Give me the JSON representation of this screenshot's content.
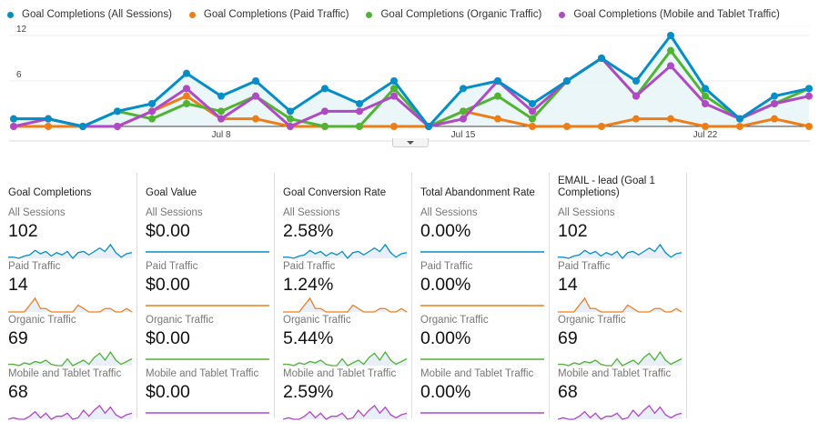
{
  "chart_data": {
    "type": "line",
    "title": "",
    "xlabel": "",
    "ylabel": "",
    "ylim": [
      0,
      12
    ],
    "yticks": [
      "12",
      "6"
    ],
    "xtick_labels": [
      {
        "index": 6,
        "label": "Jul 8"
      },
      {
        "index": 13,
        "label": "Jul 15"
      },
      {
        "index": 20,
        "label": "Jul 22"
      }
    ],
    "x": [
      "Jul 2",
      "Jul 3",
      "Jul 4",
      "Jul 5",
      "Jul 6",
      "Jul 7",
      "Jul 8",
      "Jul 9",
      "Jul 10",
      "Jul 11",
      "Jul 12",
      "Jul 13",
      "Jul 14",
      "Jul 15",
      "Jul 16",
      "Jul 17",
      "Jul 18",
      "Jul 19",
      "Jul 20",
      "Jul 21",
      "Jul 22",
      "Jul 23",
      "Jul 24",
      "Jul 25"
    ],
    "grid": true,
    "legend_position": "top-left",
    "series": [
      {
        "name": "Goal Completions (All Sessions)",
        "color": "#058DC7",
        "area": true,
        "values": [
          1,
          1,
          0,
          2,
          3,
          7,
          4,
          6,
          2,
          5,
          3,
          6,
          0,
          5,
          6,
          3,
          6,
          9,
          6,
          12,
          5,
          1,
          4,
          5
        ]
      },
      {
        "name": "Goal Completions (Paid Traffic)",
        "color": "#ED7E17",
        "area": false,
        "values": [
          0,
          0,
          0,
          0,
          2,
          4,
          1,
          1,
          0,
          0,
          0,
          0,
          0,
          2,
          1,
          0,
          0,
          0,
          1,
          1,
          0,
          0,
          1,
          0
        ]
      },
      {
        "name": "Goal Completions (Organic Traffic)",
        "color": "#50B432",
        "area": false,
        "values": [
          1,
          1,
          0,
          2,
          1,
          3,
          2,
          4,
          1,
          0,
          0,
          5,
          0,
          2,
          4,
          1,
          6,
          9,
          4,
          10,
          4,
          1,
          3,
          5
        ]
      },
      {
        "name": "Goal Completions (Mobile and Tablet Traffic)",
        "color": "#AF49C5",
        "area": false,
        "values": [
          0,
          1,
          0,
          0,
          2,
          5,
          1,
          4,
          0,
          2,
          2,
          4,
          0,
          1,
          6,
          2,
          6,
          9,
          4,
          8,
          3,
          1,
          3,
          4
        ]
      }
    ]
  },
  "legend": [
    {
      "label": "Goal Completions (All Sessions)",
      "color": "#058DC7"
    },
    {
      "label": "Goal Completions (Paid Traffic)",
      "color": "#ED7E17"
    },
    {
      "label": "Goal Completions (Organic Traffic)",
      "color": "#50B432"
    },
    {
      "label": "Goal Completions (Mobile and Tablet Traffic)",
      "color": "#AF49C5"
    }
  ],
  "segment_colors": [
    "#058DC7",
    "#ED7E17",
    "#50B432",
    "#AF49C5"
  ],
  "cards": [
    {
      "title": "Goal Completions",
      "segments": [
        {
          "label": "All Sessions",
          "value": "102",
          "spark": "all"
        },
        {
          "label": "Paid Traffic",
          "value": "14",
          "spark": "paid"
        },
        {
          "label": "Organic Traffic",
          "value": "69",
          "spark": "organic"
        },
        {
          "label": "Mobile and Tablet Traffic",
          "value": "68",
          "spark": "mobile"
        }
      ]
    },
    {
      "title": "Goal Value",
      "segments": [
        {
          "label": "All Sessions",
          "value": "$0.00",
          "spark": "flat"
        },
        {
          "label": "Paid Traffic",
          "value": "$0.00",
          "spark": "flat"
        },
        {
          "label": "Organic Traffic",
          "value": "$0.00",
          "spark": "flat"
        },
        {
          "label": "Mobile and Tablet Traffic",
          "value": "$0.00",
          "spark": "flat"
        }
      ]
    },
    {
      "title": "Goal Conversion Rate",
      "segments": [
        {
          "label": "All Sessions",
          "value": "2.58%",
          "spark": "all"
        },
        {
          "label": "Paid Traffic",
          "value": "1.24%",
          "spark": "paid"
        },
        {
          "label": "Organic Traffic",
          "value": "5.44%",
          "spark": "organic"
        },
        {
          "label": "Mobile and Tablet Traffic",
          "value": "2.59%",
          "spark": "mobile"
        }
      ]
    },
    {
      "title": "Total Abandonment Rate",
      "segments": [
        {
          "label": "All Sessions",
          "value": "0.00%",
          "spark": "flat"
        },
        {
          "label": "Paid Traffic",
          "value": "0.00%",
          "spark": "flat"
        },
        {
          "label": "Organic Traffic",
          "value": "0.00%",
          "spark": "flat"
        },
        {
          "label": "Mobile and Tablet Traffic",
          "value": "0.00%",
          "spark": "flat"
        }
      ]
    },
    {
      "title": "EMAIL - lead (Goal 1 Completions)",
      "segments": [
        {
          "label": "All Sessions",
          "value": "102",
          "spark": "all"
        },
        {
          "label": "Paid Traffic",
          "value": "14",
          "spark": "paid"
        },
        {
          "label": "Organic Traffic",
          "value": "69",
          "spark": "organic"
        },
        {
          "label": "Mobile and Tablet Traffic",
          "value": "68",
          "spark": "mobile"
        }
      ]
    }
  ]
}
